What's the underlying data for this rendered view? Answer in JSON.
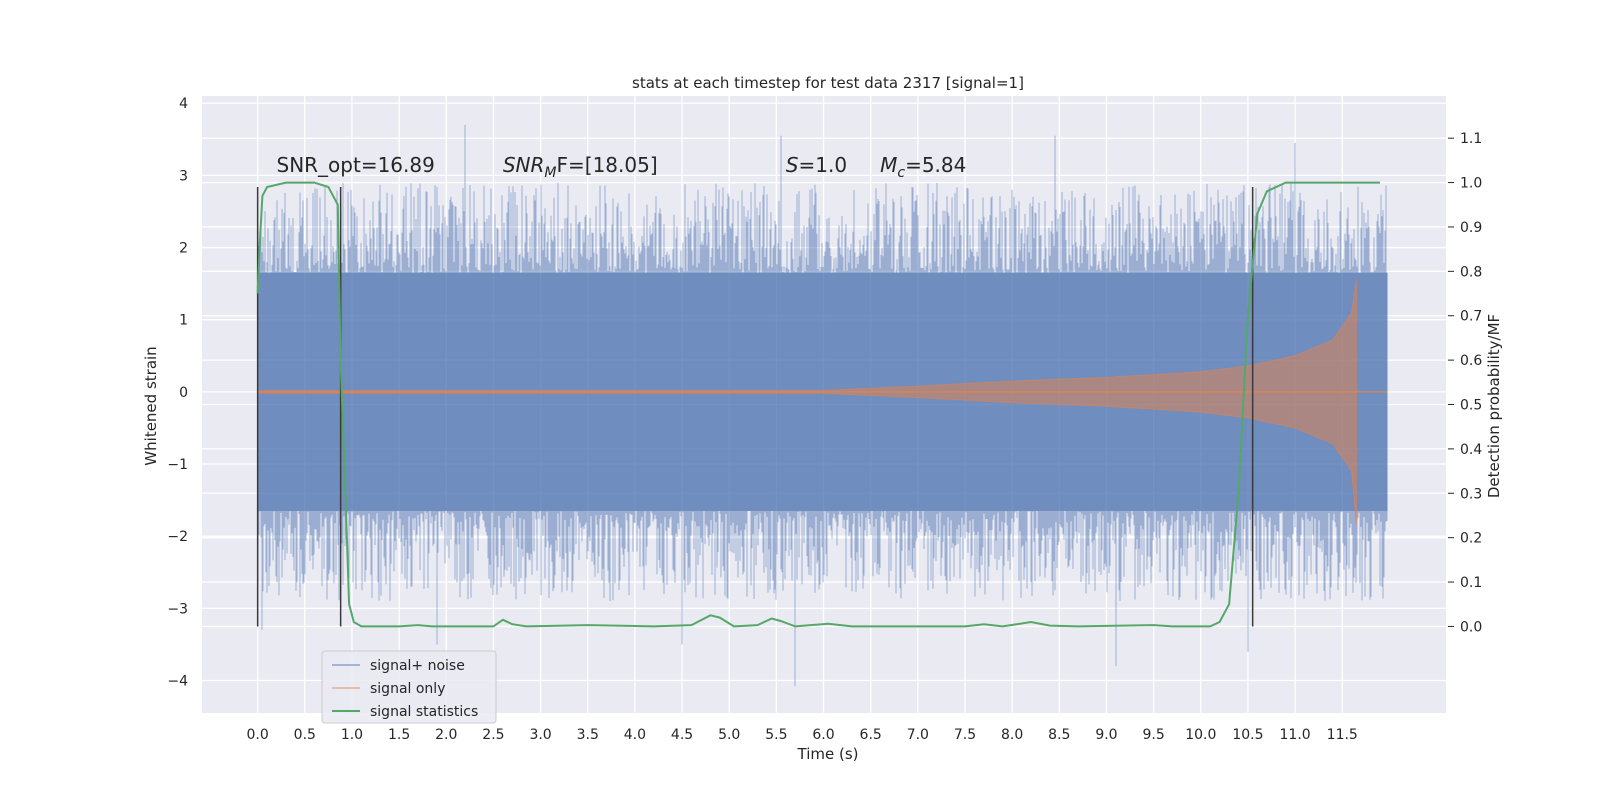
{
  "chart_data": {
    "type": "line",
    "title": "stats at each timestep for test data 2317 [signal=1]",
    "xlabel": "Time (s)",
    "ylabel_left": "Whitened strain",
    "ylabel_right": "Detection probability/MF",
    "xlim": [
      -0.59,
      12.6
    ],
    "ylim_left": [
      -4.45,
      4.1
    ],
    "ylim_right": [
      -0.195,
      1.195
    ],
    "x_ticks": [
      "0.0",
      "0.5",
      "1.0",
      "1.5",
      "2.0",
      "2.5",
      "3.0",
      "3.5",
      "4.0",
      "4.5",
      "5.0",
      "5.5",
      "6.0",
      "6.5",
      "7.0",
      "7.5",
      "8.0",
      "8.5",
      "9.0",
      "9.5",
      "10.0",
      "10.5",
      "11.0",
      "11.5"
    ],
    "y_ticks_left": [
      "4",
      "3",
      "2",
      "1",
      "0",
      "−1",
      "−2",
      "−3",
      "−4"
    ],
    "y_ticks_right": [
      "1.1",
      "1.0",
      "0.9",
      "0.8",
      "0.7",
      "0.6",
      "0.5",
      "0.4",
      "0.3",
      "0.2",
      "0.1",
      "0.0"
    ],
    "grid": true,
    "legend_position": "lower-left",
    "annotations": [
      {
        "prefix": "",
        "sub": "",
        "suffix": "SNR_opt=16.89",
        "italic_prefix": false,
        "x": 0.2
      },
      {
        "prefix": "SNR",
        "sub": "M",
        "suffix": "F=[18.05]",
        "italic_prefix": true,
        "x": 2.6
      },
      {
        "prefix": "S",
        "sub": "",
        "suffix": "=1.0",
        "italic_prefix": true,
        "x": 5.6
      },
      {
        "prefix": "M",
        "sub": "c",
        "suffix": "=5.84",
        "italic_prefix": true,
        "x": 6.6
      }
    ],
    "annotation_y": 3.05,
    "series": [
      {
        "name": "signal+ noise",
        "color": "#4c72b0",
        "axis": "left",
        "x_range": [
          0.0,
          11.98
        ],
        "band_typical": [
          -1.65,
          1.65
        ],
        "peak_max": 3.7,
        "peak_min": -4.08,
        "spikes": [
          [
            2.2,
            3.7
          ],
          [
            5.55,
            3.55
          ],
          [
            8.45,
            3.55
          ],
          [
            11.0,
            3.45
          ],
          [
            5.7,
            -4.08
          ],
          [
            9.1,
            -3.8
          ],
          [
            10.5,
            -3.6
          ],
          [
            1.9,
            -3.5
          ],
          [
            4.5,
            -3.5
          ],
          [
            11.9,
            2.2
          ],
          [
            0.05,
            -3.3
          ]
        ]
      },
      {
        "name": "signal only",
        "color": "#dd8452",
        "axis": "left",
        "description_points": [
          [
            0.0,
            0.02
          ],
          [
            6.0,
            0.02
          ],
          [
            7.0,
            0.08
          ],
          [
            8.0,
            0.15
          ],
          [
            9.0,
            0.2
          ],
          [
            10.0,
            0.28
          ],
          [
            10.5,
            0.36
          ],
          [
            11.0,
            0.5
          ],
          [
            11.4,
            0.72
          ],
          [
            11.6,
            1.1
          ],
          [
            11.65,
            1.56
          ],
          [
            11.68,
            -1.85
          ]
        ],
        "end_time": 11.68
      },
      {
        "name": "signal statistics",
        "color": "#55a868",
        "axis": "right",
        "points": [
          [
            0.0,
            0.75
          ],
          [
            0.02,
            0.85
          ],
          [
            0.05,
            0.97
          ],
          [
            0.1,
            0.99
          ],
          [
            0.3,
            1.0
          ],
          [
            0.6,
            1.0
          ],
          [
            0.75,
            0.99
          ],
          [
            0.85,
            0.95
          ],
          [
            0.88,
            0.6
          ],
          [
            0.93,
            0.3
          ],
          [
            0.97,
            0.05
          ],
          [
            1.02,
            0.01
          ],
          [
            1.1,
            0.0
          ],
          [
            1.5,
            0.0
          ],
          [
            1.7,
            0.003
          ],
          [
            1.85,
            0.0
          ],
          [
            2.5,
            0.0
          ],
          [
            2.6,
            0.015
          ],
          [
            2.7,
            0.005
          ],
          [
            2.85,
            0.0
          ],
          [
            3.5,
            0.003
          ],
          [
            4.2,
            0.0
          ],
          [
            4.6,
            0.003
          ],
          [
            4.8,
            0.025
          ],
          [
            4.9,
            0.02
          ],
          [
            5.05,
            0.0
          ],
          [
            5.3,
            0.003
          ],
          [
            5.45,
            0.018
          ],
          [
            5.55,
            0.012
          ],
          [
            5.7,
            0.0
          ],
          [
            6.05,
            0.006
          ],
          [
            6.3,
            0.0
          ],
          [
            7.5,
            0.0
          ],
          [
            7.7,
            0.005
          ],
          [
            7.9,
            0.0
          ],
          [
            8.2,
            0.01
          ],
          [
            8.4,
            0.002
          ],
          [
            8.7,
            0.0
          ],
          [
            9.5,
            0.003
          ],
          [
            9.7,
            0.0
          ],
          [
            10.1,
            0.0
          ],
          [
            10.2,
            0.01
          ],
          [
            10.3,
            0.05
          ],
          [
            10.4,
            0.3
          ],
          [
            10.5,
            0.7
          ],
          [
            10.6,
            0.93
          ],
          [
            10.7,
            0.98
          ],
          [
            10.9,
            1.0
          ],
          [
            11.3,
            1.0
          ],
          [
            11.5,
            1.0
          ],
          [
            11.9,
            1.0
          ]
        ]
      }
    ],
    "vertical_lines": [
      0.0,
      0.88,
      10.55
    ],
    "vertical_line_range_right": [
      0.0,
      1.0
    ]
  }
}
